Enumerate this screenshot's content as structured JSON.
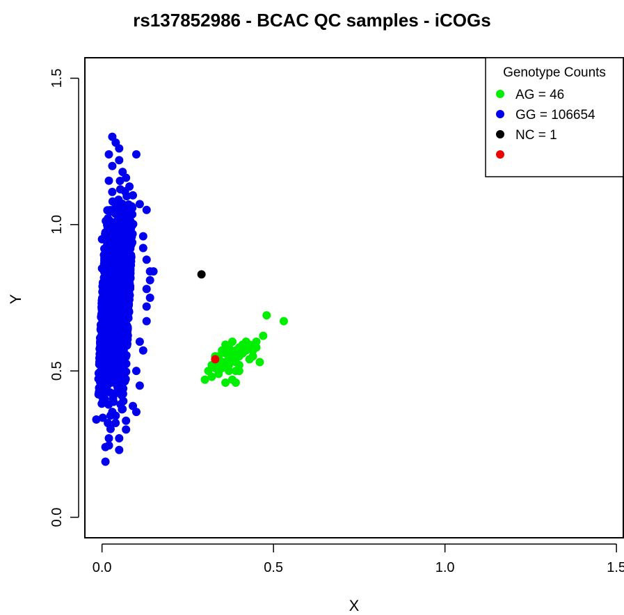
{
  "chart_data": {
    "type": "scatter",
    "title": "rs137852986 - BCAC QC samples - iCOGs",
    "xlabel": "X",
    "ylabel": "Y",
    "xlim": [
      -0.05,
      1.52
    ],
    "ylim": [
      -0.07,
      1.57
    ],
    "xticks": [
      0.0,
      0.5,
      1.0,
      1.5
    ],
    "yticks": [
      0.0,
      0.5,
      1.0,
      1.5
    ],
    "xtick_labels": [
      "0.0",
      "0.5",
      "1.0",
      "1.5"
    ],
    "ytick_labels": [
      "0.0",
      "0.5",
      "1.0",
      "1.5"
    ],
    "grid": false,
    "legend": {
      "title": "Genotype Counts",
      "position": "top-right",
      "entries": [
        {
          "label": "AG = 46",
          "color": "#00ee00"
        },
        {
          "label": "GG = 106654",
          "color": "#0000ee"
        },
        {
          "label": "NC = 1",
          "color": "#000000"
        },
        {
          "label": "",
          "color": "#ee0000"
        }
      ]
    },
    "series": [
      {
        "name": "AG = 46",
        "color": "#00ee00",
        "points": [
          [
            0.3,
            0.47
          ],
          [
            0.31,
            0.5
          ],
          [
            0.32,
            0.52
          ],
          [
            0.33,
            0.55
          ],
          [
            0.34,
            0.49
          ],
          [
            0.35,
            0.53
          ],
          [
            0.35,
            0.51
          ],
          [
            0.36,
            0.56
          ],
          [
            0.36,
            0.46
          ],
          [
            0.37,
            0.58
          ],
          [
            0.37,
            0.52
          ],
          [
            0.38,
            0.6
          ],
          [
            0.38,
            0.54
          ],
          [
            0.38,
            0.47
          ],
          [
            0.39,
            0.57
          ],
          [
            0.39,
            0.5
          ],
          [
            0.4,
            0.55
          ],
          [
            0.4,
            0.52
          ],
          [
            0.41,
            0.59
          ],
          [
            0.42,
            0.6
          ],
          [
            0.42,
            0.57
          ],
          [
            0.43,
            0.54
          ],
          [
            0.44,
            0.57
          ],
          [
            0.45,
            0.58
          ],
          [
            0.45,
            0.6
          ],
          [
            0.46,
            0.53
          ],
          [
            0.47,
            0.62
          ],
          [
            0.48,
            0.69
          ],
          [
            0.53,
            0.67
          ],
          [
            0.34,
            0.55
          ],
          [
            0.36,
            0.53
          ],
          [
            0.37,
            0.5
          ],
          [
            0.39,
            0.53
          ],
          [
            0.4,
            0.58
          ],
          [
            0.41,
            0.56
          ],
          [
            0.33,
            0.51
          ],
          [
            0.35,
            0.57
          ],
          [
            0.36,
            0.59
          ],
          [
            0.37,
            0.55
          ],
          [
            0.38,
            0.56
          ],
          [
            0.39,
            0.46
          ],
          [
            0.4,
            0.5
          ],
          [
            0.43,
            0.59
          ],
          [
            0.32,
            0.48
          ],
          [
            0.34,
            0.52
          ],
          [
            0.44,
            0.55
          ]
        ]
      },
      {
        "name": "GG = 106654",
        "color": "#0000ee",
        "points": [
          [
            0.03,
            1.3
          ],
          [
            0.04,
            1.28
          ],
          [
            0.05,
            1.26
          ],
          [
            0.02,
            1.24
          ],
          [
            0.1,
            1.24
          ],
          [
            0.05,
            1.22
          ],
          [
            0.03,
            1.2
          ],
          [
            0.06,
            1.18
          ],
          [
            0.07,
            1.16
          ],
          [
            0.02,
            1.15
          ],
          [
            0.08,
            1.13
          ],
          [
            0.11,
            1.07
          ],
          [
            0.13,
            1.05
          ],
          [
            0.12,
            0.96
          ],
          [
            0.12,
            0.92
          ],
          [
            0.13,
            0.88
          ],
          [
            0.14,
            0.84
          ],
          [
            0.15,
            0.84
          ],
          [
            0.14,
            0.81
          ],
          [
            0.13,
            0.78
          ],
          [
            0.14,
            0.75
          ],
          [
            0.13,
            0.72
          ],
          [
            0.13,
            0.67
          ],
          [
            0.12,
            0.57
          ],
          [
            0.11,
            0.45
          ],
          [
            0.0,
            0.48
          ],
          [
            0.03,
            0.36
          ],
          [
            0.07,
            0.33
          ],
          [
            0.07,
            0.3
          ],
          [
            0.05,
            0.27
          ],
          [
            0.01,
            0.24
          ],
          [
            0.05,
            0.23
          ],
          [
            0.01,
            0.19
          ],
          [
            0.02,
            0.27
          ],
          [
            0.09,
            0.38
          ],
          [
            0.1,
            0.36
          ],
          [
            0.01,
            0.62
          ],
          [
            0.0,
            0.7
          ],
          [
            0.0,
            0.95
          ],
          [
            0.0,
            0.85
          ],
          [
            0.11,
            0.6
          ],
          [
            0.1,
            0.5
          ],
          [
            0.09,
            1.1
          ]
        ]
      },
      {
        "name": "NC = 1",
        "color": "#000000",
        "points": [
          [
            0.29,
            0.83
          ]
        ]
      },
      {
        "name": "",
        "color": "#ee0000",
        "points": [
          [
            0.33,
            0.54
          ]
        ]
      }
    ],
    "gg_cluster_density": {
      "x_range": [
        0.0,
        0.09
      ],
      "y_range": [
        0.3,
        1.12
      ],
      "x_center": 0.04,
      "y_center": 0.74
    }
  }
}
